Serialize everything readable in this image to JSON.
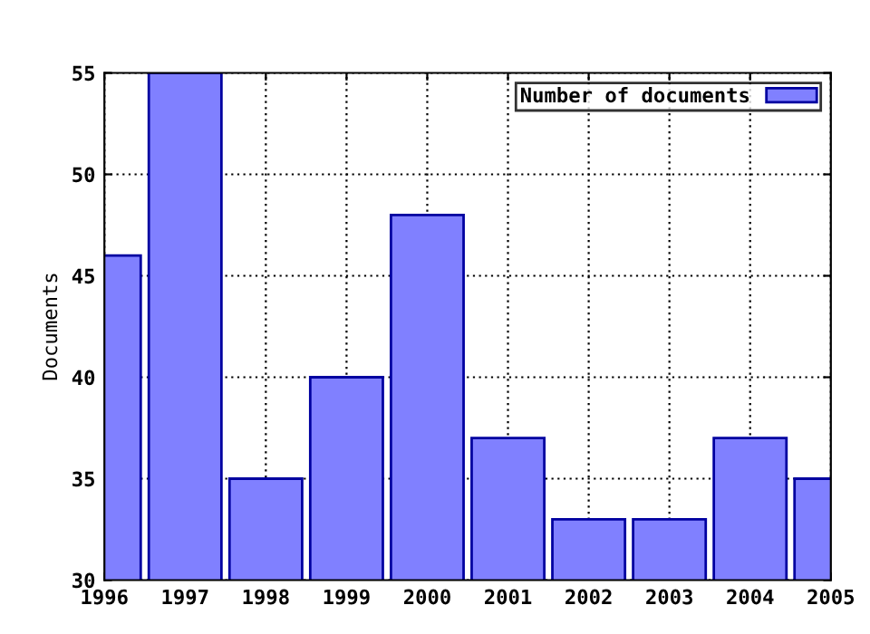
{
  "chart_data": {
    "type": "bar",
    "ylabel": "Documents",
    "x": [
      1996,
      1997,
      1998,
      1999,
      2000,
      2001,
      2002,
      2003,
      2004,
      2005
    ],
    "series": [
      {
        "name": "Number of documents",
        "color": "#8080ff",
        "values": [
          46,
          55,
          35,
          40,
          48,
          37,
          33,
          33,
          37,
          35
        ]
      }
    ],
    "xlim": [
      1996,
      2005
    ],
    "xticks": [
      1996,
      1997,
      1998,
      1999,
      2000,
      2001,
      2002,
      2003,
      2004,
      2005
    ],
    "ylim": [
      30,
      55
    ],
    "yticks": [
      30,
      35,
      40,
      45,
      50,
      55
    ],
    "grid": true,
    "legend": "top right"
  }
}
